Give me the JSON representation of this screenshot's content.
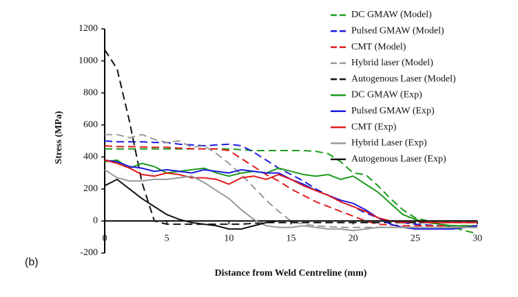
{
  "chart_data": {
    "type": "line",
    "x_label": "Distance from Weld Centreline (mm)",
    "y_label": "Stress (MPa)",
    "panel_label": "(b)",
    "x": [
      0,
      1,
      2,
      3,
      4,
      5,
      6,
      7,
      8,
      9,
      10,
      11,
      12,
      13,
      14,
      15,
      16,
      17,
      18,
      19,
      20,
      21,
      22,
      23,
      24,
      25,
      26,
      27,
      28,
      29,
      30
    ],
    "xlim": [
      0,
      30
    ],
    "xticks": [
      0,
      5,
      10,
      15,
      20,
      25,
      30
    ],
    "ylim": [
      -200,
      1200
    ],
    "yticks": [
      -200,
      0,
      200,
      400,
      600,
      800,
      1000,
      1200
    ],
    "legend": "top-right",
    "series": [
      {
        "name": "DC GMAW (Model)",
        "color": "#1a9a1a",
        "style": "dashed",
        "values": [
          450,
          450,
          450,
          450,
          450,
          450,
          450,
          450,
          450,
          450,
          450,
          445,
          440,
          440,
          440,
          440,
          440,
          435,
          420,
          370,
          300,
          290,
          220,
          140,
          70,
          20,
          0,
          -20,
          -40,
          -60,
          -80
        ]
      },
      {
        "name": "Pulsed GMAW (Model)",
        "color": "#1a1ae0",
        "style": "dashed",
        "values": [
          500,
          495,
          495,
          495,
          490,
          490,
          480,
          475,
          470,
          475,
          480,
          470,
          430,
          380,
          330,
          290,
          250,
          200,
          160,
          120,
          90,
          50,
          20,
          0,
          -10,
          -20,
          -25,
          -30,
          -30,
          -30,
          -30
        ]
      },
      {
        "name": "CMT (Model)",
        "color": "#e01a1a",
        "style": "dashed",
        "values": [
          470,
          465,
          465,
          462,
          460,
          460,
          455,
          452,
          450,
          450,
          440,
          390,
          340,
          290,
          250,
          200,
          160,
          120,
          90,
          60,
          30,
          0,
          -20,
          -25,
          -30,
          -30,
          -30,
          -30,
          -30,
          -30,
          -30
        ]
      },
      {
        "name": "Hybrid laser (Model)",
        "color": "#999999",
        "style": "dashed",
        "values": [
          540,
          540,
          520,
          540,
          510,
          490,
          500,
          460,
          470,
          420,
          360,
          290,
          210,
          130,
          60,
          0,
          -20,
          -30,
          -35,
          -40,
          -40,
          -40,
          -40,
          -40,
          -40,
          -40,
          -40,
          -40,
          -40,
          -40,
          -40
        ]
      },
      {
        "name": "Autogenous Laser (Model)",
        "color": "#111111",
        "style": "dashed",
        "values": [
          1070,
          950,
          620,
          240,
          0,
          -20,
          -20,
          -20,
          -20,
          -20,
          -20,
          -20,
          -15,
          -10,
          -10,
          -10,
          -10,
          -10,
          -10,
          -10,
          -10,
          -10,
          -10,
          -10,
          -10,
          -10,
          -10,
          -10,
          -10,
          -10,
          -10
        ]
      },
      {
        "name": "DC GMAW (Exp)",
        "color": "#1a9a1a",
        "style": "solid",
        "values": [
          370,
          380,
          330,
          360,
          340,
          300,
          310,
          320,
          330,
          300,
          280,
          300,
          310,
          300,
          330,
          310,
          290,
          280,
          290,
          260,
          280,
          230,
          180,
          110,
          40,
          10,
          -10,
          -20,
          -30,
          -30,
          -30
        ]
      },
      {
        "name": "Pulsed GMAW (Exp)",
        "color": "#1a1ae0",
        "style": "solid",
        "values": [
          380,
          370,
          340,
          330,
          310,
          320,
          310,
          300,
          320,
          310,
          300,
          320,
          310,
          300,
          300,
          260,
          230,
          190,
          160,
          130,
          110,
          70,
          20,
          -20,
          -40,
          -50,
          -50,
          -50,
          -50,
          -40,
          -30
        ]
      },
      {
        "name": "CMT (Exp)",
        "color": "#e01a1a",
        "style": "solid",
        "values": [
          380,
          360,
          330,
          290,
          280,
          300,
          290,
          270,
          270,
          260,
          230,
          270,
          280,
          260,
          290,
          260,
          220,
          190,
          160,
          120,
          90,
          60,
          20,
          0,
          -10,
          0,
          -10,
          -10,
          -10,
          -10,
          -10
        ]
      },
      {
        "name": "Hybrid Laser (Exp)",
        "color": "#999999",
        "style": "solid",
        "values": [
          320,
          270,
          250,
          250,
          260,
          260,
          270,
          280,
          240,
          190,
          140,
          70,
          10,
          -30,
          -40,
          -40,
          -30,
          -40,
          -50,
          -50,
          -60,
          -50,
          -40,
          -40,
          -40,
          -40,
          -40,
          -40,
          -40,
          -40,
          -40
        ]
      },
      {
        "name": "Autogenous Laser (Exp)",
        "color": "#111111",
        "style": "solid",
        "values": [
          220,
          260,
          200,
          140,
          90,
          40,
          10,
          -10,
          -20,
          -30,
          -50,
          -50,
          -30,
          -10,
          0,
          0,
          0,
          0,
          0,
          0,
          0,
          0,
          0,
          0,
          0,
          0,
          0,
          0,
          0,
          0,
          0
        ]
      }
    ]
  }
}
